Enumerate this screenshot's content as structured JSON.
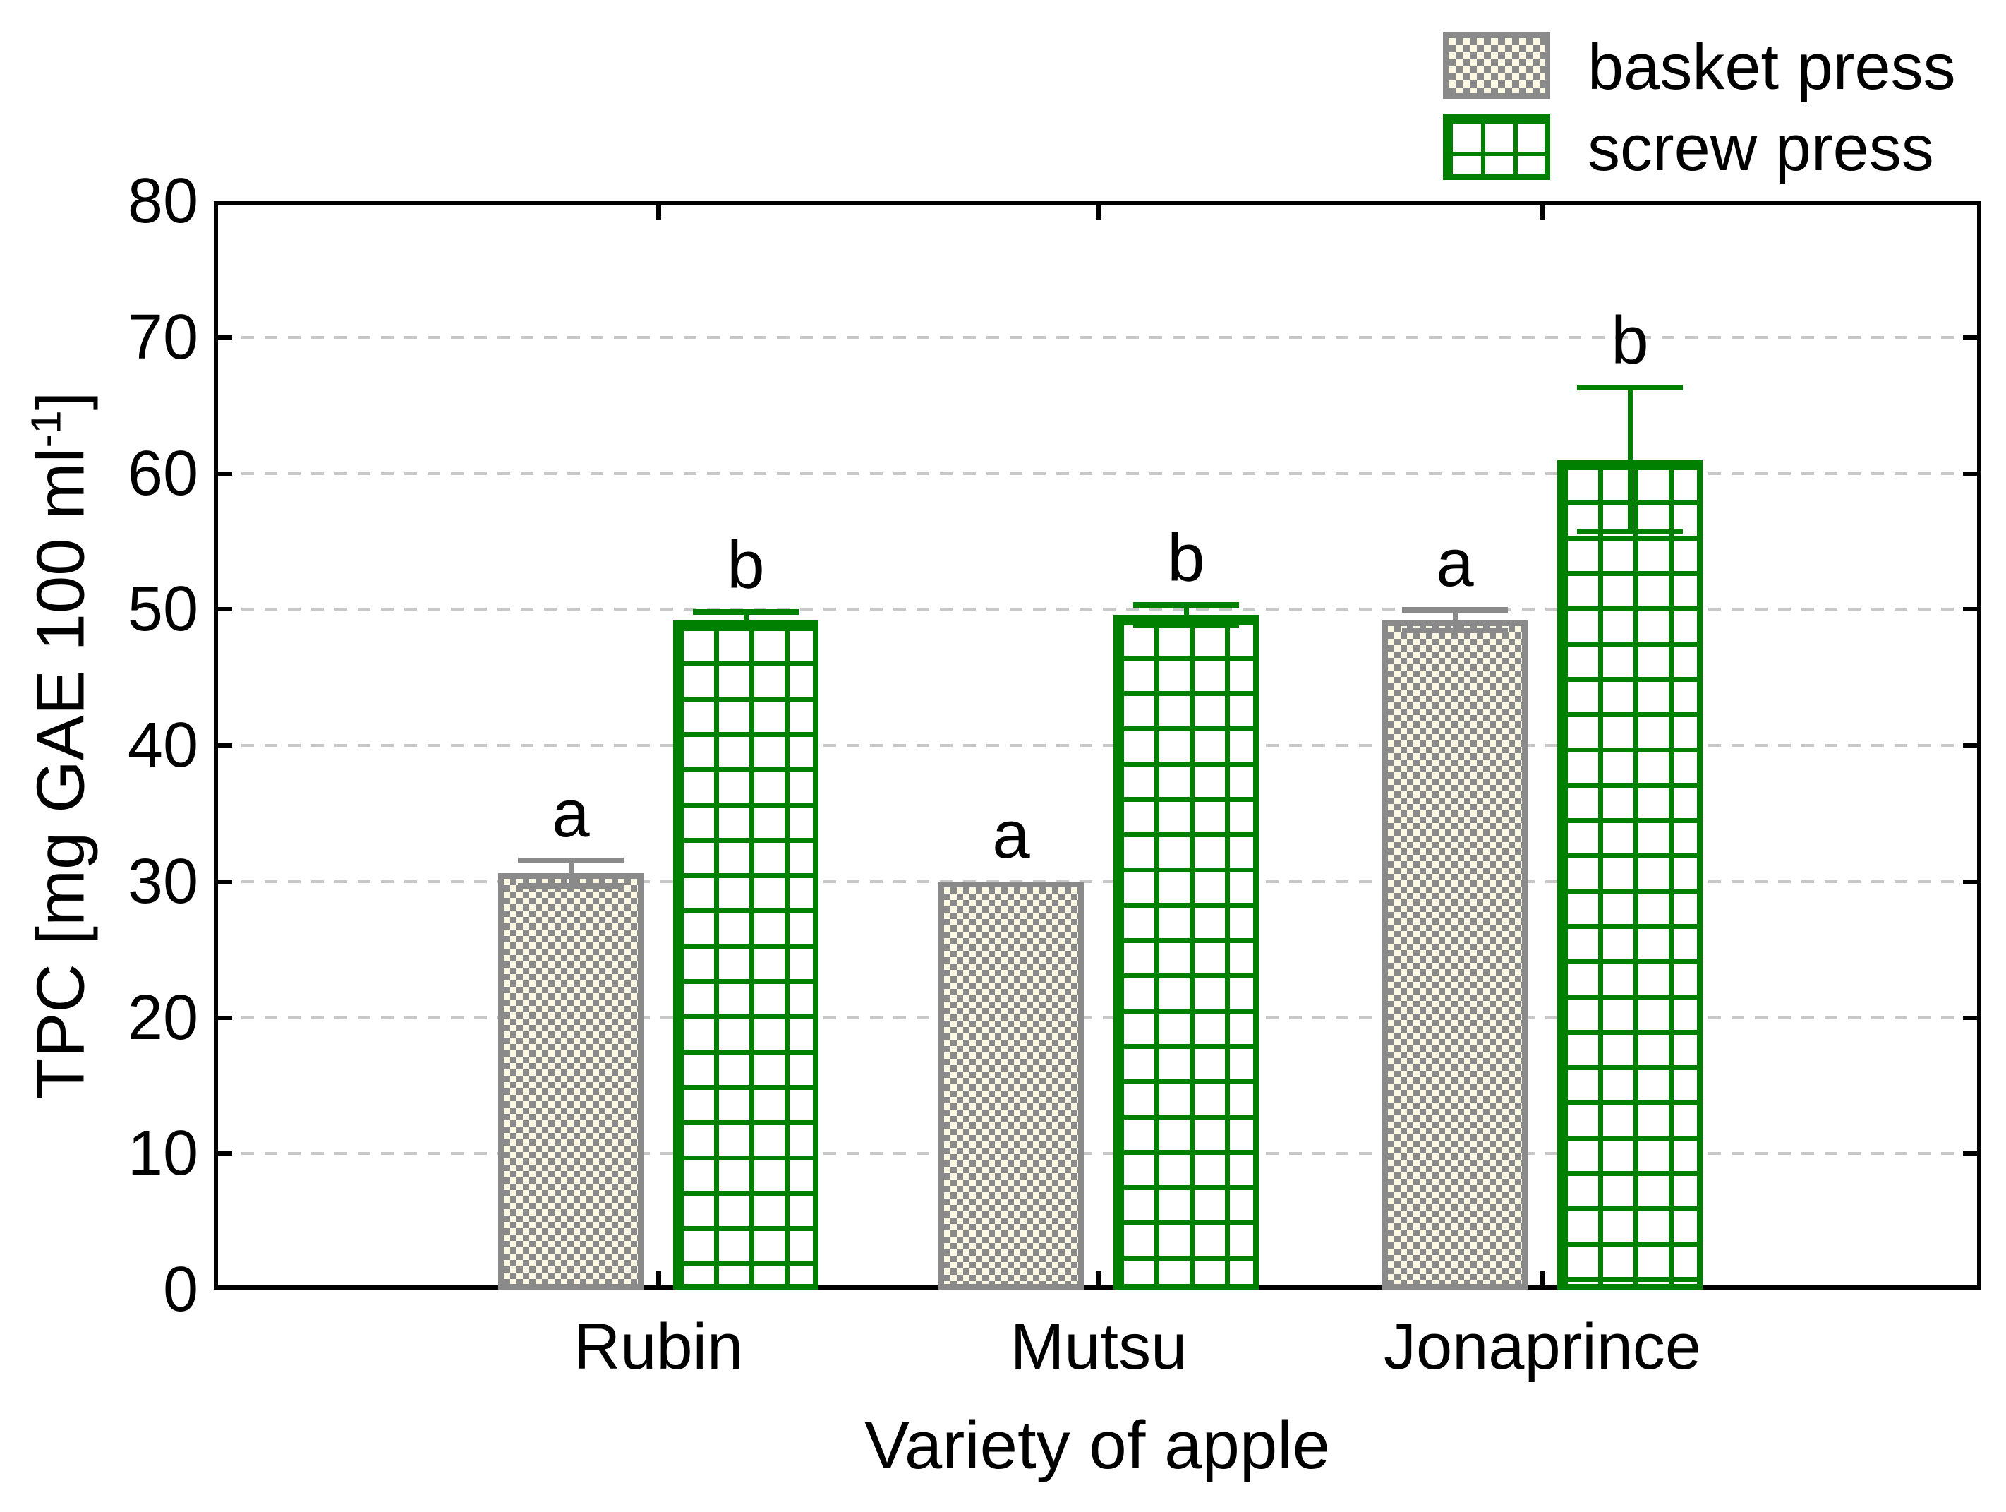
{
  "chart_data": {
    "type": "bar",
    "title": "",
    "xlabel": "Variety of apple",
    "ylabel": "TPC [mg GAE 100 ml-1]",
    "ylabel_parts": {
      "pre": "TPC [mg GAE 100 ml",
      "sup": "-1",
      "post": "]"
    },
    "categories": [
      "Rubin",
      "Mutsu",
      "Jonaprince"
    ],
    "series": [
      {
        "name": "basket press",
        "values": [
          30.6,
          30.0,
          49.2
        ],
        "errors": [
          0.95,
          0,
          0.75
        ],
        "sig_letters": [
          "a",
          "a",
          "a"
        ],
        "pattern": "checkerboard"
      },
      {
        "name": "screw press",
        "values": [
          49.2,
          49.6,
          61.0
        ],
        "errors": [
          0.6,
          0.75,
          5.3
        ],
        "sig_letters": [
          "b",
          "b",
          "b"
        ],
        "pattern": "green-grid"
      }
    ],
    "ylim": [
      0,
      80
    ],
    "ytick_step": 10,
    "grid": "horizontal-dashed",
    "legend_position": "top-right"
  },
  "colors": {
    "basket_gray": "#8a8a8a",
    "basket_cream": "#fbf9e3",
    "screw_green": "#008000",
    "gridline": "#c8c8c8",
    "axis": "#000000"
  }
}
